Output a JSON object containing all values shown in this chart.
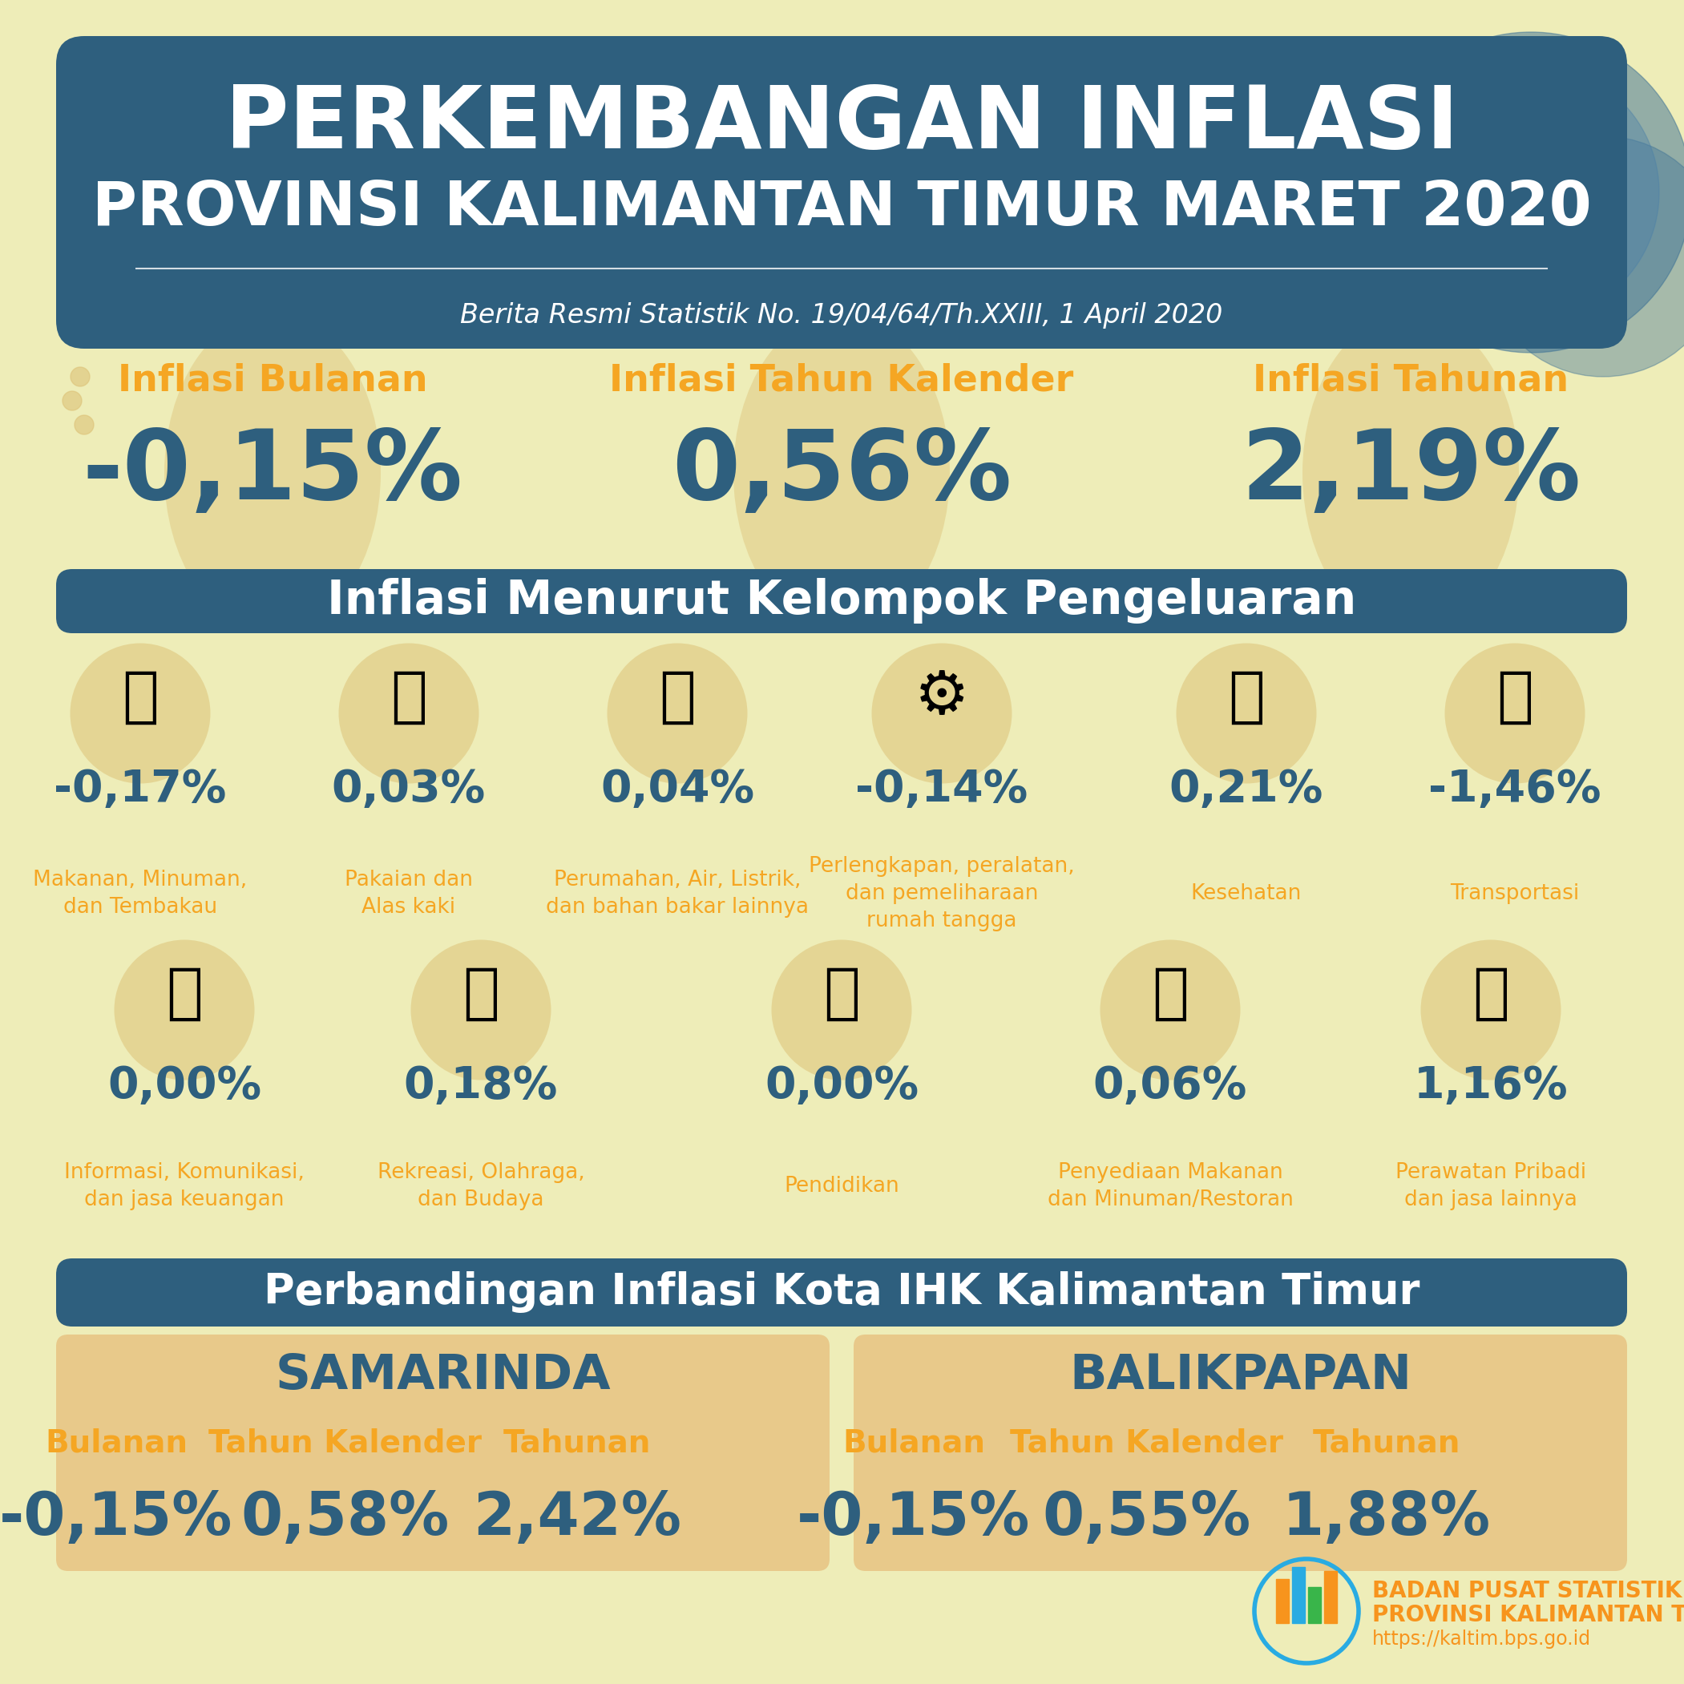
{
  "bg_color": "#eeedb8",
  "title_line1": "PERKEMBANGAN INFLASI",
  "title_line2": "PROVINSI KALIMANTAN TIMUR MARET 2020",
  "subtitle": "Berita Resmi Statistik No. 19/04/64/Th.XXIII, 1 April 2020",
  "title_bg": "#2e5f7e",
  "orange_color": "#f5a623",
  "dark_blue": "#2e5f7e",
  "inflasi_labels": [
    "Inflasi Bulanan",
    "Inflasi Tahun Kalender",
    "Inflasi Tahunan"
  ],
  "inflasi_values": [
    "-0,15%",
    "0,56%",
    "2,19%"
  ],
  "section2_title": "Inflasi Menurut Kelompok Pengeluaran",
  "row1_values": [
    "-0,17%",
    "0,03%",
    "0,04%",
    "-0,14%",
    "0,21%",
    "-1,46%"
  ],
  "row1_labels": [
    "Makanan, Minuman,\ndan Tembakau",
    "Pakaian dan\nAlas kaki",
    "Perumahan, Air, Listrik,\ndan bahan bakar lainnya",
    "Perlengkapan, peralatan,\ndan pemeliharaan\nrumah tangga",
    "Kesehatan",
    "Transportasi"
  ],
  "row2_values": [
    "0,00%",
    "0,18%",
    "0,00%",
    "0,06%",
    "1,16%"
  ],
  "row2_labels": [
    "Informasi, Komunikasi,\ndan jasa keuangan",
    "Rekreasi, Olahraga,\ndan Budaya",
    "Pendidikan",
    "Penyediaan Makanan\ndan Minuman/Restoran",
    "Perawatan Pribadi\ndan jasa lainnya"
  ],
  "section3_title": "Perbandingan Inflasi Kota IHK Kalimantan Timur",
  "city1": "SAMARINDA",
  "city2": "BALIKPAPAN",
  "col_labels": [
    "Bulanan",
    "Tahun Kalender",
    "Tahunan"
  ],
  "samarinda_values": [
    "-0,15%",
    "0,58%",
    "2,42%"
  ],
  "balikpapan_values": [
    "-0,15%",
    "0,55%",
    "1,88%"
  ],
  "bps_text1": "BADAN PUSAT STATISTIK",
  "bps_text2": "PROVINSI KALIMANTAN TIMUR",
  "bps_url": "https://kaltim.bps.go.id",
  "tan_color": "#e8c98a",
  "ellipse_color": "#ddc278"
}
